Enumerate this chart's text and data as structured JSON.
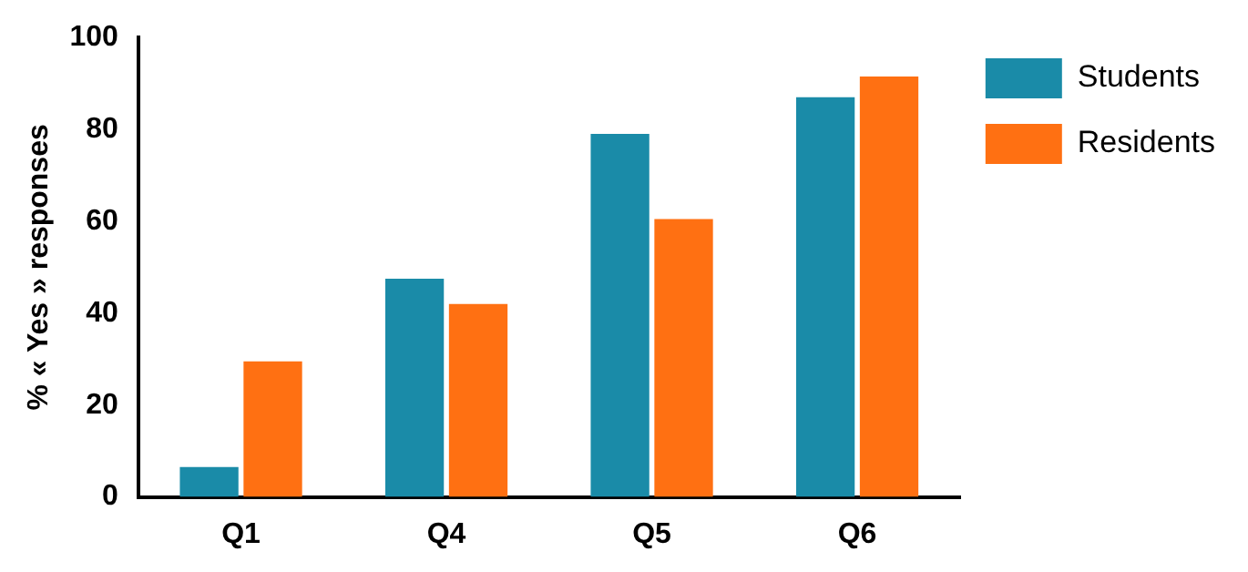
{
  "chart_data": {
    "type": "bar",
    "ylabel": "% « Yes » responses",
    "categories": [
      "Q1",
      "Q4",
      "Q5",
      "Q6"
    ],
    "series": [
      {
        "name": "Students",
        "color": "#1a8ba8",
        "values": [
          6.5,
          47.5,
          79,
          87
        ]
      },
      {
        "name": "Residents",
        "color": "#ff7012",
        "values": [
          29.5,
          42,
          60.5,
          91.5
        ]
      }
    ],
    "ylim": [
      0,
      100
    ],
    "yticks": [
      0,
      20,
      40,
      60,
      80,
      100
    ],
    "grid": false,
    "legend": "top right"
  }
}
